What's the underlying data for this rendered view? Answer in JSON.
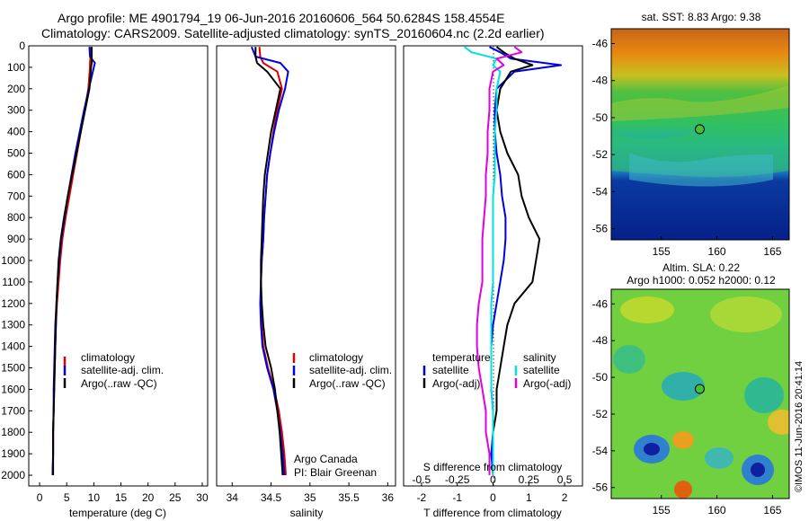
{
  "header": {
    "line1": "Argo profile: ME 4901794_19 06-Jun-2016 20160606_564 50.6284S 158.4554E",
    "line2": "Climatology: CARS2009. Satellite-adjusted climatology: synTS_20160604.nc (2.2d earlier)"
  },
  "depth_ticks": [
    "0",
    "100",
    "200",
    "300",
    "400",
    "500",
    "600",
    "700",
    "800",
    "900",
    "1000",
    "1100",
    "1200",
    "1300",
    "1400",
    "1500",
    "1600",
    "1700",
    "1800",
    "1900",
    "2000"
  ],
  "colors": {
    "climatology": "#e00000",
    "satellite": "#0000e0",
    "argo": "#000000",
    "sat_salinity": "#00e0e0",
    "argo_adj_salinity": "#e000e0"
  },
  "chart_data": [
    {
      "type": "line",
      "id": "temperature",
      "xlabel": "temperature (deg C)",
      "xlim": [
        -2,
        31
      ],
      "ylim": [
        2050,
        0
      ],
      "xticks": [
        "0",
        "5",
        "10",
        "15",
        "20",
        "25",
        "30"
      ],
      "xtick_values": [
        0,
        5,
        10,
        15,
        20,
        25,
        30
      ],
      "legend": [
        "climatology",
        "satellite-adj. clim.",
        "Argo(..raw -QC)"
      ],
      "depth": [
        5,
        50,
        80,
        100,
        200,
        300,
        400,
        500,
        600,
        700,
        800,
        900,
        1000,
        1100,
        1200,
        1300,
        1400,
        1500,
        1600,
        1700,
        1800,
        1900,
        2000
      ],
      "series": [
        {
          "name": "climatology",
          "values": [
            9.4,
            9.4,
            9.3,
            9.3,
            9.0,
            8.3,
            7.6,
            6.9,
            6.2,
            5.5,
            4.8,
            4.2,
            3.8,
            3.5,
            3.2,
            3.0,
            2.9,
            2.8,
            2.7,
            2.6,
            2.5,
            2.5,
            2.4
          ]
        },
        {
          "name": "satellite-adj. clim.",
          "values": [
            9.2,
            9.3,
            10.2,
            10.0,
            9.1,
            8.2,
            7.4,
            6.6,
            5.9,
            5.2,
            4.6,
            4.0,
            3.6,
            3.3,
            3.1,
            2.9,
            2.8,
            2.7,
            2.6,
            2.6,
            2.5,
            2.5,
            2.4
          ]
        },
        {
          "name": "Argo(..raw -QC)",
          "values": [
            9.6,
            9.6,
            9.6,
            9.5,
            9.2,
            8.4,
            7.6,
            6.8,
            6.0,
            5.2,
            4.5,
            3.9,
            3.5,
            3.3,
            3.1,
            3.0,
            2.9,
            2.8,
            2.7,
            2.6,
            2.5,
            2.5,
            2.5
          ]
        }
      ]
    },
    {
      "type": "line",
      "id": "salinity",
      "xlabel": "salinity",
      "xlim": [
        33.8,
        36.1
      ],
      "ylim": [
        2050,
        0
      ],
      "xticks": [
        "34",
        "34.5",
        "35",
        "35.5",
        "36"
      ],
      "xtick_values": [
        34,
        34.5,
        35,
        35.5,
        36
      ],
      "legend": [
        "climatology",
        "satellite-adj. clim.",
        "Argo(..raw -QC)"
      ],
      "annotation": [
        "Argo Canada",
        "PI: Blair Greenan"
      ],
      "depth": [
        5,
        50,
        80,
        120,
        200,
        300,
        400,
        500,
        600,
        700,
        800,
        900,
        1000,
        1100,
        1200,
        1300,
        1400,
        1500,
        1600,
        1700,
        1800,
        1900,
        2000
      ],
      "series": [
        {
          "name": "climatology",
          "values": [
            34.35,
            34.36,
            34.4,
            34.58,
            34.64,
            34.58,
            34.53,
            34.49,
            34.45,
            34.43,
            34.41,
            34.4,
            34.38,
            34.37,
            34.37,
            34.38,
            34.4,
            34.46,
            34.54,
            34.6,
            34.64,
            34.67,
            34.69
          ]
        },
        {
          "name": "satellite-adj. clim.",
          "values": [
            34.25,
            34.3,
            34.62,
            34.72,
            34.68,
            34.6,
            34.54,
            34.49,
            34.45,
            34.43,
            34.41,
            34.4,
            34.38,
            34.37,
            34.36,
            34.37,
            34.39,
            34.45,
            34.53,
            34.58,
            34.62,
            34.65,
            34.67
          ]
        },
        {
          "name": "Argo(..raw -QC)",
          "values": [
            34.3,
            34.3,
            34.32,
            34.45,
            34.62,
            34.56,
            34.5,
            34.46,
            34.42,
            34.4,
            34.39,
            34.38,
            34.37,
            34.37,
            34.38,
            34.4,
            34.43,
            34.5,
            34.55,
            34.58,
            34.61,
            34.63,
            34.65
          ]
        }
      ]
    },
    {
      "type": "line",
      "id": "difference",
      "xlabel": "T difference from climatology",
      "xlabel2": "S difference from climatology",
      "xlim": [
        -2.5,
        2.5
      ],
      "ylim": [
        2050,
        0
      ],
      "xticks": [
        "-2",
        "-1",
        "0",
        "1",
        "2"
      ],
      "xtick_values": [
        -2,
        -1,
        0,
        1,
        2
      ],
      "xticks_top": [
        "-0.5",
        "-0.25",
        "0",
        "0.25",
        "0.5"
      ],
      "xticks_top_pos": [
        -2,
        -1,
        0,
        1,
        2
      ],
      "legend_titles": [
        "temperature",
        "salinity"
      ],
      "legend": [
        "satellite",
        "Argo(-adj)",
        "satellite",
        "Argo(-adj)"
      ],
      "depth": [
        5,
        30,
        60,
        90,
        120,
        200,
        300,
        400,
        500,
        600,
        700,
        800,
        900,
        1000,
        1100,
        1200,
        1300,
        1400,
        1500,
        1600,
        1700,
        1800,
        1900,
        2000
      ],
      "series": [
        {
          "name": "temperature satellite",
          "values": [
            -0.1,
            0.2,
            0.5,
            1.9,
            0.6,
            0.1,
            0.05,
            0.05,
            0.1,
            0.2,
            0.25,
            0.35,
            0.35,
            0.3,
            0.2,
            0.1,
            0.0,
            -0.05,
            -0.05,
            -0.05,
            0.0,
            0.0,
            -0.05,
            0.0
          ]
        },
        {
          "name": "temperature Argo(-adj)",
          "values": [
            0.1,
            0.3,
            0.6,
            1.1,
            0.5,
            0.2,
            0.1,
            0.2,
            0.4,
            0.7,
            0.8,
            1.0,
            1.3,
            1.2,
            1.1,
            0.6,
            0.4,
            0.3,
            0.2,
            0.1,
            0.1,
            0.0,
            0.0,
            0.0
          ]
        },
        {
          "name": "salinity satellite",
          "values": [
            -0.8,
            -0.6,
            0.1,
            0.0,
            0.2,
            0.1,
            0.1,
            0.05,
            0.05,
            0.05,
            0.0,
            0.0,
            0.0,
            0.0,
            0.0,
            -0.05,
            -0.05,
            -0.05,
            -0.05,
            -0.05,
            0.0,
            0.0,
            0.0,
            0.0
          ]
        },
        {
          "name": "salinity Argo(-adj)",
          "values": [
            0.6,
            0.8,
            0.1,
            0.3,
            0.0,
            -0.1,
            -0.1,
            -0.15,
            -0.15,
            -0.2,
            -0.2,
            -0.25,
            -0.3,
            -0.3,
            -0.3,
            -0.4,
            -0.45,
            -0.45,
            -0.4,
            -0.3,
            -0.2,
            -0.2,
            -0.1,
            -0.1
          ]
        }
      ]
    },
    {
      "type": "heatmap",
      "id": "sst_map",
      "title": "sat. SST: 8.83 Argo: 9.38",
      "xticks": [
        "155",
        "160",
        "165"
      ],
      "xtick_values": [
        155,
        160,
        165
      ],
      "yticks": [
        "-46",
        "-48",
        "-50",
        "-52",
        "-54",
        "-56"
      ],
      "ytick_values": [
        -46,
        -48,
        -50,
        -52,
        -54,
        -56
      ],
      "xlim": [
        150.5,
        166.5
      ],
      "ylim": [
        -56.6,
        -45.2
      ],
      "marker": {
        "lon": 158.4554,
        "lat": -50.6284
      },
      "marker_color": "#40c040"
    },
    {
      "type": "heatmap",
      "id": "sla_map",
      "title_lines": [
        "Altim. SLA: 0.22",
        "Argo h1000: 0.052 h2000: 0.12"
      ],
      "xticks": [
        "155",
        "160",
        "165"
      ],
      "xtick_values": [
        155,
        160,
        165
      ],
      "yticks": [
        "-46",
        "-48",
        "-50",
        "-52",
        "-54",
        "-56"
      ],
      "ytick_values": [
        -46,
        -48,
        -50,
        -52,
        -54,
        -56
      ],
      "xlim": [
        150.5,
        166.5
      ],
      "ylim": [
        -56.6,
        -45.2
      ],
      "marker": {
        "lon": 158.4554,
        "lat": -50.6284
      },
      "marker_color": "#40c040"
    }
  ],
  "credit": "©IMOS 11-Jun-2016 20:41:14"
}
